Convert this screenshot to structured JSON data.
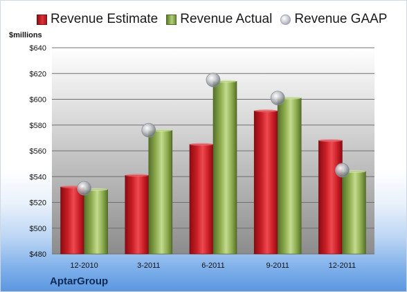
{
  "legend": {
    "estimate": "Revenue Estimate",
    "actual": "Revenue Actual",
    "gaap": "Revenue GAAP"
  },
  "unit_label": "$millions",
  "company": "AptarGroup",
  "colors": {
    "estimate": "#d4242c",
    "actual": "#9bbb59",
    "gaap": "#c0c4cb",
    "plot_top": "#ffffff",
    "plot_bottom": "#8a8a8a"
  },
  "chart_data": {
    "type": "bar",
    "categories": [
      "12-2010",
      "3-2011",
      "6-2011",
      "9-2011",
      "12-2011"
    ],
    "series": [
      {
        "name": "Revenue Estimate",
        "values": [
          532,
          541,
          565,
          591,
          568
        ]
      },
      {
        "name": "Revenue Actual",
        "values": [
          530,
          576,
          614,
          601,
          544
        ]
      },
      {
        "name": "Revenue GAAP",
        "values": [
          531,
          576,
          615,
          601,
          545
        ]
      }
    ],
    "ylim": [
      480,
      640
    ],
    "yticks": [
      480,
      500,
      520,
      540,
      560,
      580,
      600,
      620,
      640
    ],
    "ytick_labels": [
      "$480",
      "$500",
      "$520",
      "$540",
      "$560",
      "$580",
      "$600",
      "$620",
      "$640"
    ],
    "ylabel": "$millions",
    "legend_position": "top",
    "grid": true
  }
}
